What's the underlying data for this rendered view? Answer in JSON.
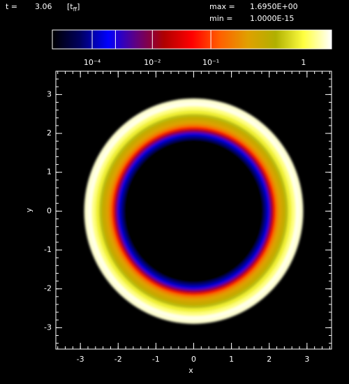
{
  "header": {
    "t_label": "t =",
    "t_value": "3.06",
    "t_unit": "[t",
    "t_unit_sub": "ff",
    "t_unit_end": "]",
    "max_label": "max =",
    "max": "1.6950E+00",
    "min_label": "min =",
    "min": "1.0000E-15"
  },
  "chart_data": {
    "type": "image",
    "colorbar": {
      "scale": "power",
      "exponent": 0.2,
      "colormap": [
        "#000000",
        "#000060",
        "#0000ff",
        "#600080",
        "#b00000",
        "#ff0000",
        "#ff6000",
        "#e0a000",
        "#b0b000",
        "#ffff40",
        "#ffffff"
      ],
      "lines": [
        0.0001,
        0.001,
        0.01,
        0.1
      ],
      "ticks": [
        {
          "value": 0.0001,
          "label": "10⁻⁴"
        },
        {
          "value": 0.01,
          "label": "10⁻²"
        },
        {
          "value": 0.1,
          "label": "10⁻¹"
        },
        1
      ]
    },
    "x_label": "x",
    "y_label": "y",
    "xlim": [
      -3.65,
      3.65
    ],
    "ylim": [
      -3.55,
      3.6
    ],
    "xticks": [
      -3,
      -2,
      -1,
      0,
      1,
      2,
      3
    ],
    "yticks": [
      -3,
      -2,
      -1,
      0,
      1,
      2,
      3
    ],
    "minor_per_major": 5,
    "extent": [
      -2.9,
      2.9
    ],
    "profile": {
      "r": [
        0,
        1.85,
        1.92,
        1.97,
        2.02,
        2.07,
        2.12,
        2.18,
        2.25,
        2.33,
        2.42,
        2.5,
        2.6,
        2.7,
        2.8,
        2.9
      ],
      "values": [
        1e-15,
        1e-06,
        3e-05,
        0.0002,
        0.001,
        0.006,
        0.02,
        0.08,
        0.2,
        0.3,
        0.4,
        0.6,
        0.9,
        1.2,
        1.6,
        1.5
      ]
    }
  }
}
